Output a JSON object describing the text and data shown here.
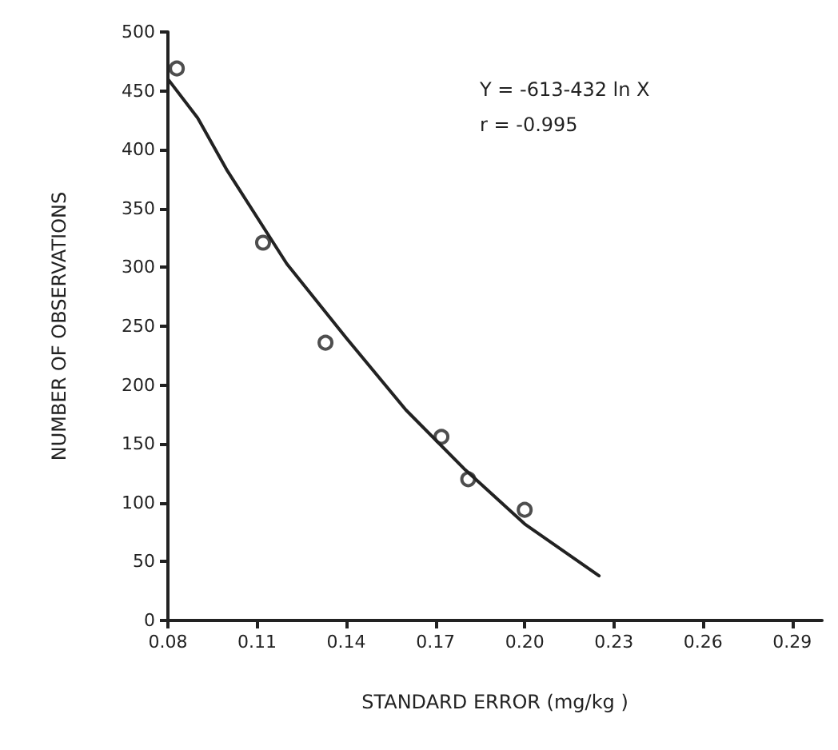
{
  "chart_data": {
    "type": "scatter",
    "xlabel": "STANDARD ERROR (mg/kg )",
    "ylabel": "NUMBER OF OBSERVATIONS",
    "annotations": [
      "Y = -613-432 ln X",
      "r = -0.995"
    ],
    "xlim": [
      0.08,
      0.3
    ],
    "xticks": [
      {
        "value": 0.08,
        "label": "0.08"
      },
      {
        "value": 0.11,
        "label": "0.11"
      },
      {
        "value": 0.14,
        "label": "0.14"
      },
      {
        "value": 0.17,
        "label": "0.17"
      },
      {
        "value": 0.2,
        "label": "0.20"
      },
      {
        "value": 0.23,
        "label": "0.23"
      },
      {
        "value": 0.26,
        "label": "0.26"
      },
      {
        "value": 0.29,
        "label": "0.29"
      }
    ],
    "ylim": [
      0,
      500
    ],
    "yticks": [
      0,
      50,
      100,
      150,
      200,
      250,
      300,
      350,
      400,
      450,
      500
    ],
    "grid": false,
    "series": [
      {
        "marker": "circle",
        "color": "#222222",
        "x": [
          0.083,
          0.112,
          0.133,
          0.172,
          0.181,
          0.2
        ],
        "values": [
          469,
          321,
          236,
          156,
          120,
          94
        ]
      },
      {
        "type": "line",
        "marker": "none",
        "line_style": "solid",
        "color": "#222222",
        "x": [
          0.08,
          0.09,
          0.1,
          0.12,
          0.14,
          0.16,
          0.18,
          0.2,
          0.225
        ],
        "values": [
          460,
          427,
          382,
          303,
          240,
          179,
          128,
          82,
          38
        ]
      }
    ]
  }
}
